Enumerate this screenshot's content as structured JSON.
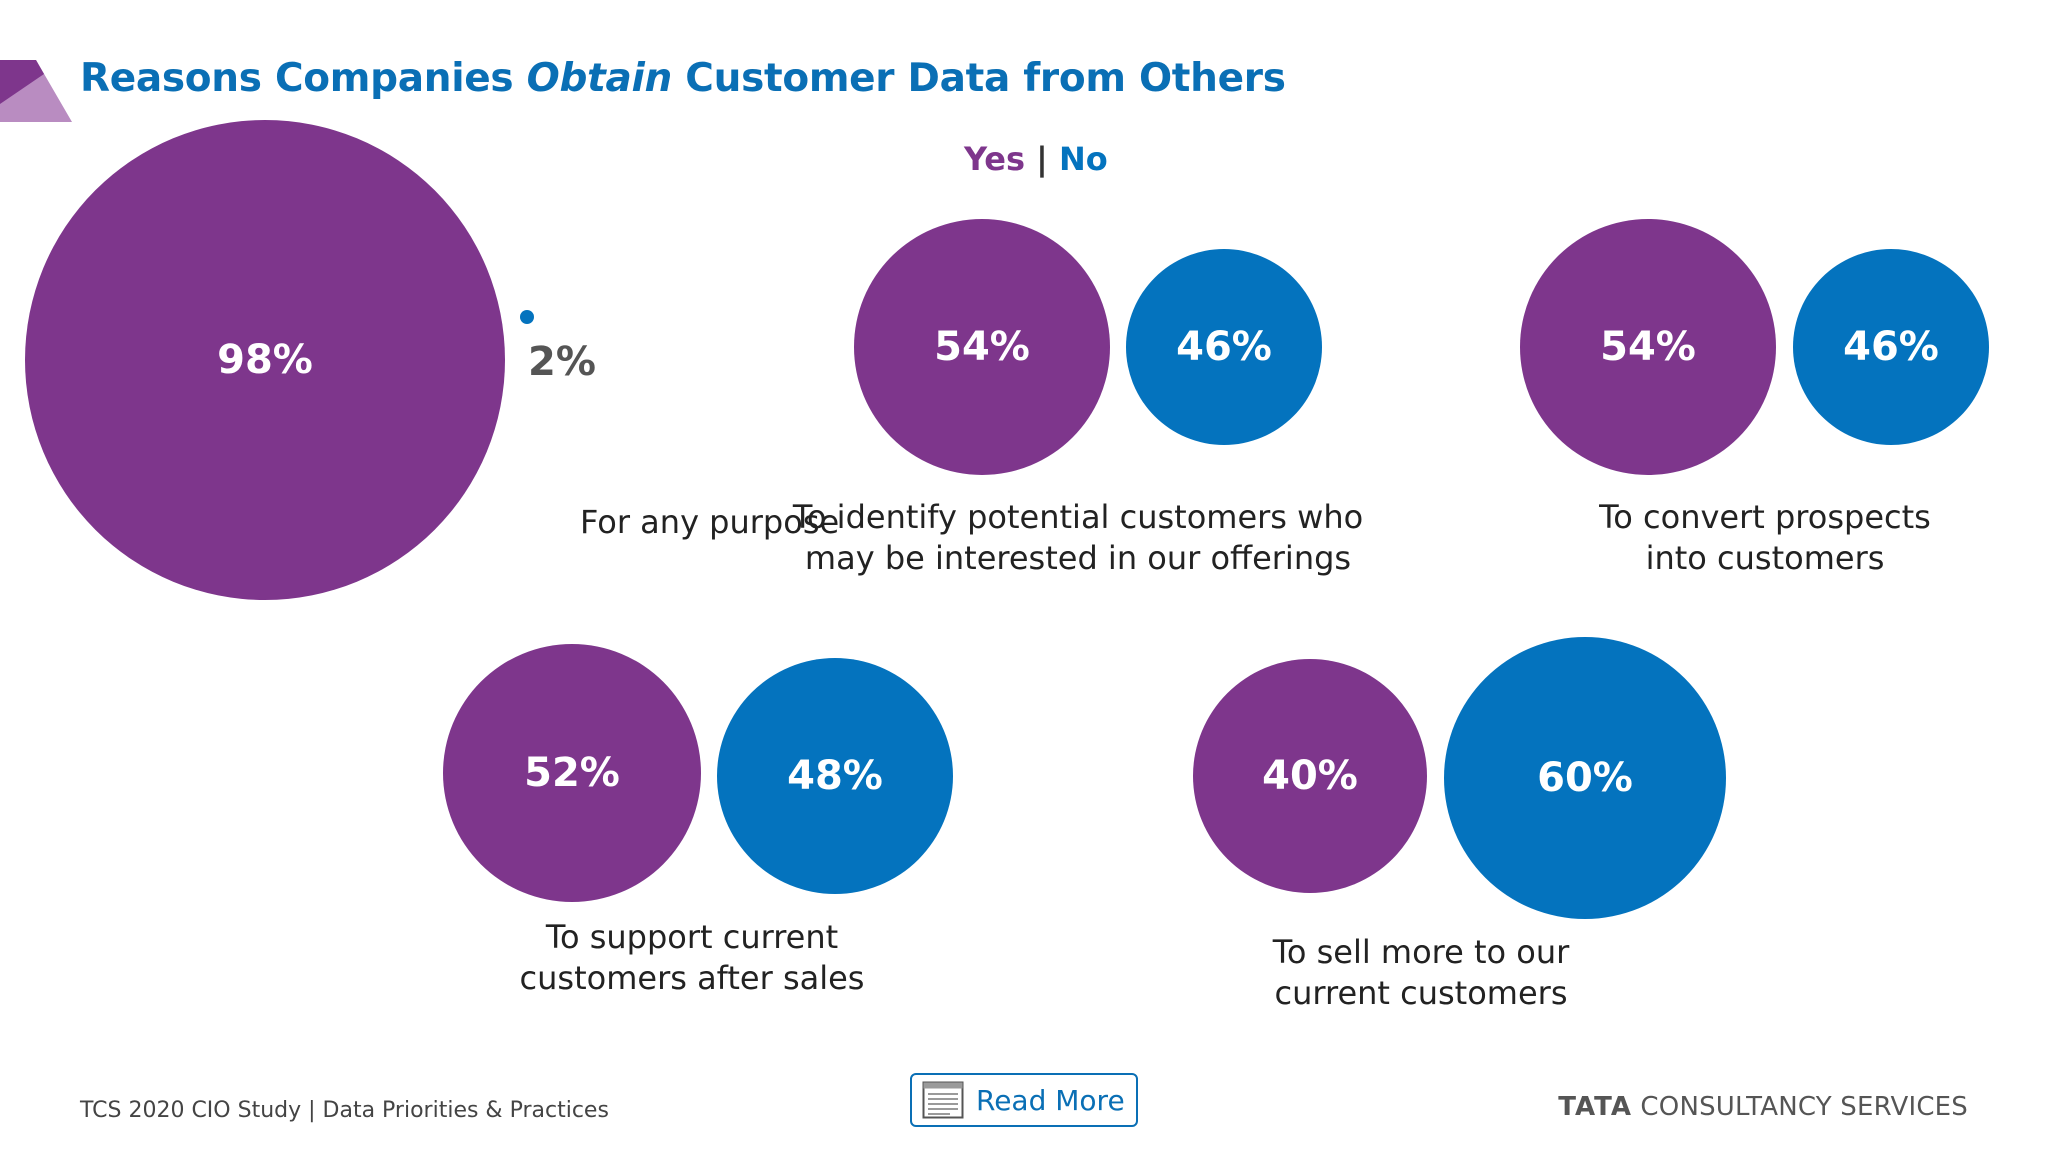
{
  "title": {
    "part1": "Reasons Companies ",
    "emphasis": "Obtain",
    "part2": " Customer Data from Others"
  },
  "legend": {
    "yes": "Yes",
    "separator": "|",
    "no": "No"
  },
  "colors": {
    "yes": "#7e368c",
    "no": "#0473be",
    "title": "#0a6fb5",
    "corner": "#7e368c"
  },
  "chart_data": {
    "type": "bubble",
    "series": [
      {
        "name": "Yes",
        "color": "#7e368c"
      },
      {
        "name": "No",
        "color": "#0473be"
      }
    ],
    "categories": [
      {
        "label_lines": [
          "For any purpose"
        ],
        "yes": 98,
        "no": 2,
        "yes_label": "98%",
        "no_label": "2%"
      },
      {
        "label_lines": [
          "To identify potential customers who",
          "may be interested in our offerings"
        ],
        "yes": 54,
        "no": 46,
        "yes_label": "54%",
        "no_label": "46%"
      },
      {
        "label_lines": [
          "To convert prospects",
          "into customers"
        ],
        "yes": 54,
        "no": 46,
        "yes_label": "54%",
        "no_label": "46%"
      },
      {
        "label_lines": [
          "To support current",
          "customers after sales"
        ],
        "yes": 52,
        "no": 48,
        "yes_label": "52%",
        "no_label": "48%"
      },
      {
        "label_lines": [
          "To sell more to our",
          "current customers"
        ],
        "yes": 40,
        "no": 60,
        "yes_label": "40%",
        "no_label": "60%"
      }
    ]
  },
  "footer": {
    "study": "TCS 2020 CIO Study | Data Priorities & Practices",
    "read_more": "Read More",
    "brand_bold": "TATA",
    "brand_rest": " CONSULTANCY SERVICES"
  }
}
